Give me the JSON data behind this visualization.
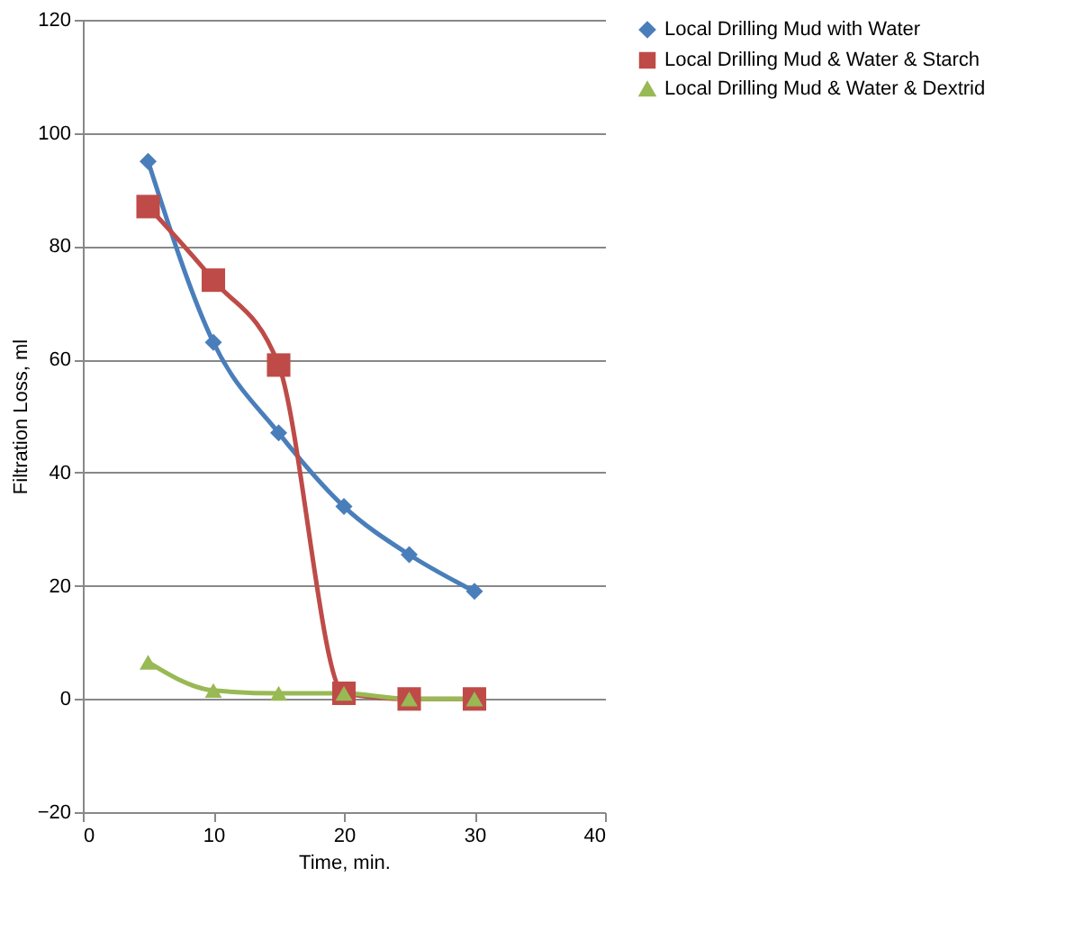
{
  "chart_data": {
    "type": "line",
    "xlabel": "Time, min.",
    "ylabel": "Filtration Loss, ml",
    "x": [
      5,
      10,
      15,
      20,
      25,
      30
    ],
    "series": [
      {
        "name": "Local Drilling Mud with Water",
        "color": "#4a7ebb",
        "marker": "diamond",
        "values": [
          95,
          63,
          47,
          34,
          25.5,
          19
        ]
      },
      {
        "name": "Local Drilling Mud & Water & Starch",
        "color": "#be4b48",
        "marker": "square",
        "values": [
          87,
          74,
          59,
          1,
          0,
          0
        ]
      },
      {
        "name": "Local Drilling Mud & Water & Dextrid",
        "color": "#98b954",
        "marker": "triangle",
        "values": [
          6.5,
          1.5,
          1,
          1,
          0,
          0
        ]
      }
    ],
    "xlim": [
      0,
      40
    ],
    "xticks": [
      0,
      10,
      20,
      30,
      40
    ],
    "ylim": [
      -20,
      120
    ],
    "yticks": [
      -20,
      0,
      20,
      40,
      60,
      80,
      100,
      120
    ],
    "grid": "y",
    "legend": "right",
    "line_style": "solid"
  }
}
